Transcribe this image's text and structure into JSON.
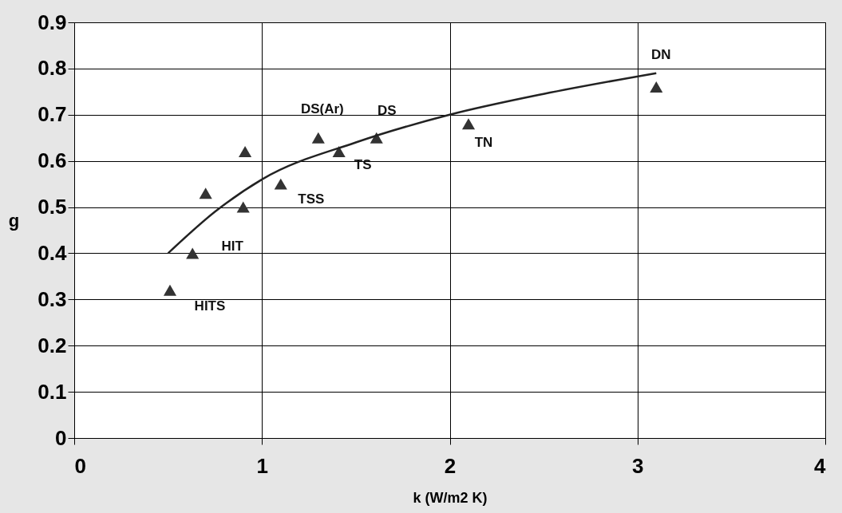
{
  "chart_data": {
    "type": "scatter",
    "xlabel": "k (W/m2 K)",
    "ylabel": "g",
    "series": [
      {
        "color": "#333333",
        "marker": "triangle",
        "x": [
          0.51,
          0.63,
          0.7,
          0.9,
          0.91,
          1.1,
          1.3,
          1.41,
          1.61,
          2.1,
          3.1
        ],
        "values": [
          0.32,
          0.4,
          0.53,
          0.5,
          0.62,
          0.55,
          0.65,
          0.62,
          0.65,
          0.68,
          0.76
        ]
      },
      {
        "type": "line",
        "marker": "none",
        "color": "#222222",
        "x": [
          0.5,
          0.75,
          1.0,
          1.5,
          2.0,
          2.5,
          3.1
        ],
        "values": [
          0.4,
          0.49,
          0.56,
          0.64,
          0.7,
          0.745,
          0.79
        ]
      }
    ],
    "annotations": [
      {
        "text": "HITS",
        "x": 0.51,
        "y": 0.32
      },
      {
        "text": "HIT",
        "x": 0.63,
        "y": 0.4
      },
      {
        "text": "TSS",
        "x": 1.1,
        "y": 0.55
      },
      {
        "text": "DS(Ar)",
        "x": 1.3,
        "y": 0.65
      },
      {
        "text": "TS",
        "x": 1.41,
        "y": 0.62
      },
      {
        "text": "DS",
        "x": 1.61,
        "y": 0.65
      },
      {
        "text": "TN",
        "x": 2.1,
        "y": 0.68
      },
      {
        "text": "DN",
        "x": 3.1,
        "y": 0.76
      }
    ],
    "xlim": [
      0,
      4
    ],
    "xticks": [
      0,
      1,
      2,
      3,
      4
    ],
    "ylim": [
      0,
      0.9
    ],
    "yticks": [
      0,
      0.1,
      0.2,
      0.3,
      0.4,
      0.5,
      0.6,
      0.7,
      0.8,
      0.9
    ],
    "grid": true,
    "line_style": "solid"
  }
}
